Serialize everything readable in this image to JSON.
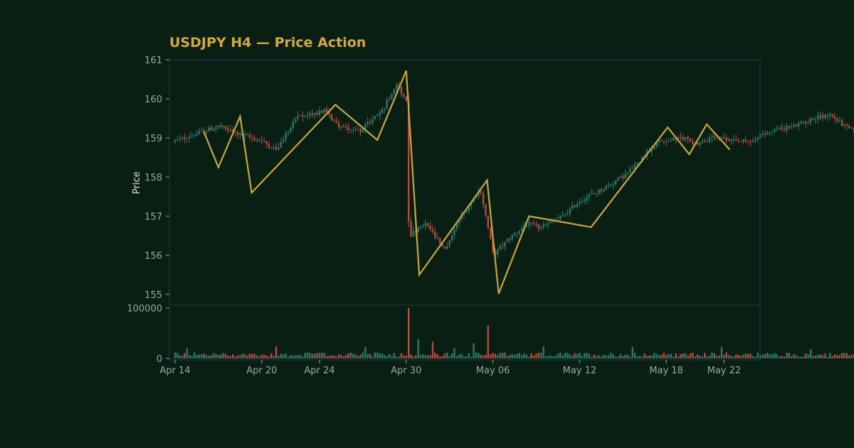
{
  "chart_data": {
    "type": "candlestick",
    "title": "USDJPY H4 — Price Action",
    "ylabel": "Price",
    "xlabel": "",
    "price_ylim": [
      155,
      161
    ],
    "volume_ylim": [
      0,
      100000
    ],
    "price_ticks": [
      "155",
      "156",
      "157",
      "158",
      "159",
      "160",
      "161"
    ],
    "volume_ticks": [
      "0",
      "100000"
    ],
    "x_ticks": [
      {
        "label": "Apr 14",
        "day": 0
      },
      {
        "label": "Apr 20",
        "day": 6
      },
      {
        "label": "Apr 24",
        "day": 10
      },
      {
        "label": "Apr 30",
        "day": 16
      },
      {
        "label": "May 06",
        "day": 22
      },
      {
        "label": "May 12",
        "day": 28
      },
      {
        "label": "May 18",
        "day": 34
      },
      {
        "label": "May 22",
        "day": 38
      }
    ],
    "x_range_days": [
      0,
      48.5
    ],
    "grid": false,
    "legend": "none",
    "colors": {
      "background": "#0a1f14",
      "title": "#d4a843",
      "up": "#2a7a6a",
      "down": "#b84a3e",
      "zigzag": "#c9a642",
      "frame": "#1f3a44"
    },
    "price_control_points": [
      [
        0,
        158.9
      ],
      [
        3.2,
        159.3
      ],
      [
        4.5,
        159.1
      ],
      [
        6,
        158.95
      ],
      [
        7.2,
        158.7
      ],
      [
        8.5,
        159.5
      ],
      [
        10.5,
        159.7
      ],
      [
        11.5,
        159.3
      ],
      [
        13,
        159.2
      ],
      [
        14.5,
        159.7
      ],
      [
        15.5,
        160.4
      ],
      [
        16.2,
        159.9
      ],
      [
        16.35,
        156.5
      ],
      [
        17.6,
        156.8
      ],
      [
        18.8,
        156.1
      ],
      [
        19.8,
        156.9
      ],
      [
        21.3,
        157.7
      ],
      [
        22.2,
        156.0
      ],
      [
        23.2,
        156.4
      ],
      [
        24.5,
        156.8
      ],
      [
        25.5,
        156.7
      ],
      [
        27,
        157.0
      ],
      [
        28.2,
        157.4
      ],
      [
        29.8,
        157.7
      ],
      [
        31.5,
        158.1
      ],
      [
        33.5,
        158.9
      ],
      [
        35.5,
        159.0
      ],
      [
        36.2,
        158.85
      ],
      [
        37.5,
        159.0
      ],
      [
        39,
        158.9
      ],
      [
        40,
        158.9
      ],
      [
        41.5,
        159.2
      ],
      [
        43,
        159.3
      ],
      [
        44.5,
        159.5
      ],
      [
        45.5,
        159.6
      ],
      [
        46.5,
        159.3
      ],
      [
        47,
        159.2
      ]
    ],
    "volume_spikes": [
      {
        "day": 7.0,
        "volume": 35000
      },
      {
        "day": 16.15,
        "volume": 100000
      },
      {
        "day": 16.8,
        "volume": 38000
      },
      {
        "day": 17.8,
        "volume": 33000
      },
      {
        "day": 20.6,
        "volume": 30000
      },
      {
        "day": 21.7,
        "volume": 65000
      }
    ],
    "zigzag": [
      [
        2.0,
        159.15
      ],
      [
        3.0,
        158.25
      ],
      [
        4.5,
        159.55
      ],
      [
        5.3,
        157.6
      ],
      [
        11.1,
        159.85
      ],
      [
        14.0,
        158.95
      ],
      [
        16.0,
        160.72
      ],
      [
        16.9,
        155.5
      ],
      [
        21.6,
        157.92
      ],
      [
        22.4,
        155.02
      ],
      [
        24.5,
        157.0
      ],
      [
        28.8,
        156.72
      ],
      [
        34.1,
        159.27
      ],
      [
        35.6,
        158.58
      ],
      [
        36.8,
        159.35
      ],
      [
        38.4,
        158.7
      ]
    ]
  }
}
